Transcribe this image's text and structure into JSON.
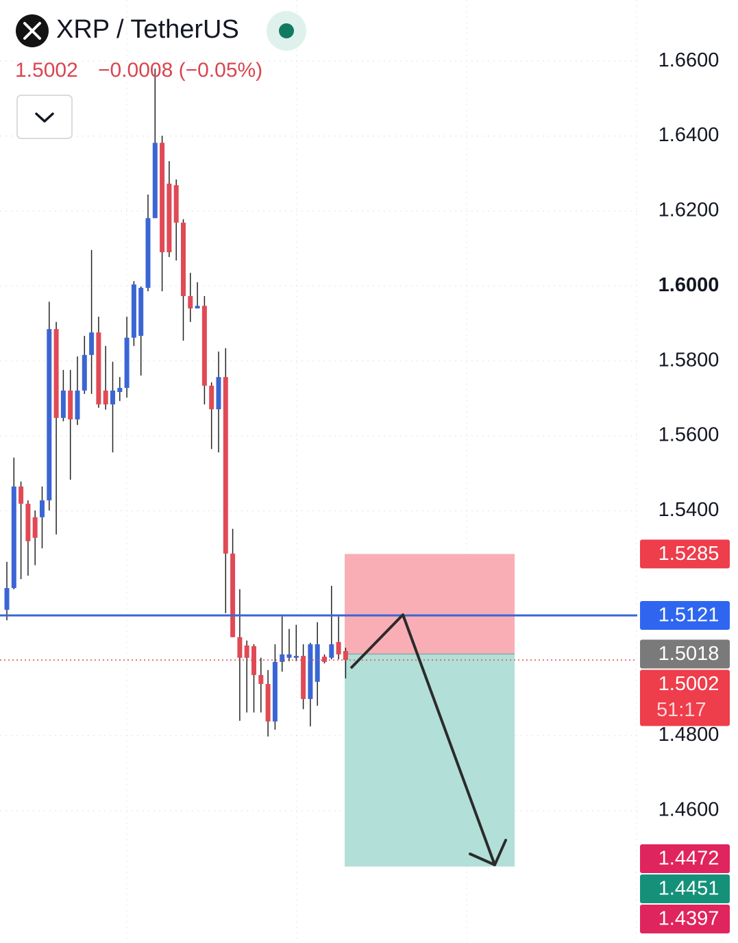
{
  "header": {
    "symbol": "XRP / TetherUS",
    "price": "1.5002",
    "change": "−0.0008 (−0.05%)"
  },
  "chart_data": {
    "type": "candlestick",
    "up_color": "#3a66d4",
    "down_color": "#e04a55",
    "open": [
      1.5136,
      1.5194,
      1.5465,
      1.5419,
      1.5383,
      1.5383,
      1.5428,
      1.5885,
      1.5648,
      1.5721,
      1.5644,
      1.5721,
      1.5816,
      1.5876,
      1.5721,
      1.5684,
      1.5717,
      1.5728,
      1.5862,
      1.5867,
      1.5995,
      1.6181,
      1.6382,
      1.6273,
      1.6269,
      1.6169,
      1.5973,
      1.594,
      1.5947,
      1.5734,
      1.5671,
      1.5757,
      1.5286,
      1.5063,
      1.5041,
      1.5039,
      1.4962,
      1.4938,
      1.4838,
      1.4997,
      1.5008,
      1.5008,
      1.5013,
      1.4898,
      1.4944,
      1.5011,
      1.5008,
      1.505,
      1.5026
    ],
    "high": [
      1.5264,
      1.5542,
      1.5478,
      1.5428,
      1.5401,
      1.5465,
      1.5958,
      1.5904,
      1.5776,
      1.5776,
      1.5812,
      1.5867,
      1.6096,
      1.5918,
      1.584,
      1.5798,
      1.5757,
      1.5918,
      1.6013,
      1.5999,
      1.6244,
      1.658,
      1.6401,
      1.6333,
      1.6284,
      1.6178,
      1.6035,
      1.601,
      1.5973,
      1.5743,
      1.5825,
      1.5834,
      1.5352,
      1.5191,
      1.5054,
      1.5044,
      1.5008,
      1.4975,
      1.5044,
      1.5118,
      1.5085,
      1.5096,
      1.5044,
      1.5048,
      1.5103,
      1.5017,
      1.52,
      1.5118,
      1.5035
    ],
    "low": [
      1.5108,
      1.5191,
      1.5218,
      1.5227,
      1.5255,
      1.53,
      1.5401,
      1.5337,
      1.5639,
      1.5483,
      1.5629,
      1.5712,
      1.5712,
      1.5675,
      1.567,
      1.5556,
      1.5693,
      1.5702,
      1.584,
      1.5761,
      1.5986,
      1.6181,
      1.5986,
      1.6077,
      1.6068,
      1.5854,
      1.5904,
      1.594,
      1.5684,
      1.5565,
      1.5556,
      1.5127,
      1.5063,
      1.484,
      1.4862,
      1.4862,
      1.4862,
      1.4798,
      1.4816,
      1.4971,
      1.4999,
      1.4999,
      1.4871,
      1.4825,
      1.488,
      1.4993,
      1.5004,
      1.5004,
      1.4953
    ],
    "close": [
      1.5194,
      1.5465,
      1.5419,
      1.5319,
      1.5328,
      1.5428,
      1.5885,
      1.5648,
      1.5721,
      1.5644,
      1.5721,
      1.5816,
      1.5876,
      1.5684,
      1.5684,
      1.5721,
      1.5728,
      1.5862,
      1.6004,
      1.5995,
      1.6181,
      1.6382,
      1.609,
      1.609,
      1.6169,
      1.5973,
      1.594,
      1.5947,
      1.5734,
      1.5671,
      1.5757,
      1.5286,
      1.5063,
      1.5008,
      1.5008,
      1.4962,
      1.4938,
      1.4838,
      1.4997,
      1.5017,
      1.5017,
      1.5013,
      1.4898,
      1.5044,
      1.5044,
      1.4997,
      1.5044,
      1.5017,
      1.5002
    ],
    "ylim": [
      1.4247,
      1.6763
    ],
    "yticks": [
      {
        "value": 1.66,
        "label": "1.6600"
      },
      {
        "value": 1.64,
        "label": "1.6400"
      },
      {
        "value": 1.62,
        "label": "1.6200"
      },
      {
        "value": 1.6,
        "label": "1.6000",
        "bold": true
      },
      {
        "value": 1.58,
        "label": "1.5800"
      },
      {
        "value": 1.56,
        "label": "1.5600"
      },
      {
        "value": 1.54,
        "label": "1.5400"
      },
      {
        "value": 1.48,
        "label": "1.4800"
      },
      {
        "value": 1.46,
        "label": "1.4600"
      }
    ],
    "grid": true,
    "hline": {
      "value": 1.5121,
      "color": "#3a66d4"
    },
    "last_price": {
      "value": 1.5002,
      "color": "#e04a55"
    },
    "position": {
      "stop": 1.5285,
      "entry": 1.5018,
      "target": 1.4451
    },
    "countdown": "51:17",
    "price_tags": [
      {
        "value": 1.5285,
        "color": "#ee3d4b"
      },
      {
        "value": 1.5121,
        "color": "#2f66f0"
      },
      {
        "value": 1.5018,
        "color": "#7a7a7a"
      },
      {
        "value": 1.5002,
        "color": "#ee3d4b"
      },
      {
        "value": 1.4472,
        "color": "#e0245e"
      },
      {
        "value": 1.4451,
        "color": "#15917a"
      },
      {
        "value": 1.4397,
        "color": "#e0245e"
      }
    ]
  }
}
